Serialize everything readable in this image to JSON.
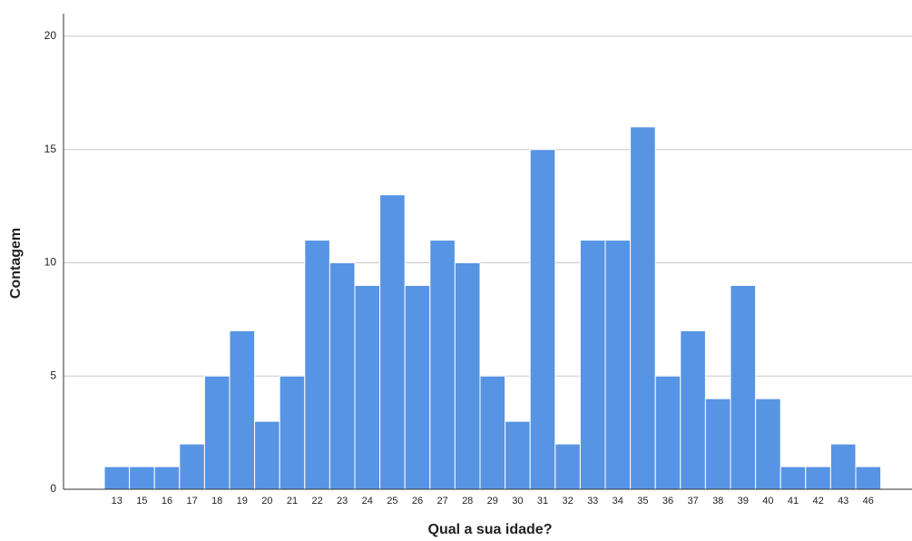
{
  "chart_data": {
    "type": "bar",
    "x_label": "Qual a sua idade?",
    "y_label": "Contagem",
    "categories": [
      "13",
      "15",
      "16",
      "17",
      "18",
      "19",
      "20",
      "21",
      "22",
      "23",
      "24",
      "25",
      "26",
      "27",
      "28",
      "29",
      "30",
      "31",
      "32",
      "33",
      "34",
      "35",
      "36",
      "37",
      "38",
      "39",
      "40",
      "41",
      "42",
      "43",
      "46"
    ],
    "values": [
      1,
      1,
      1,
      2,
      5,
      7,
      3,
      5,
      11,
      10,
      9,
      13,
      9,
      11,
      10,
      5,
      3,
      15,
      2,
      11,
      11,
      16,
      5,
      7,
      4,
      9,
      4,
      1,
      1,
      2,
      1
    ],
    "color": "#5794e3",
    "ylim": [
      0,
      20
    ],
    "yticks": [
      0,
      5,
      10,
      15,
      20
    ],
    "grid": true
  }
}
